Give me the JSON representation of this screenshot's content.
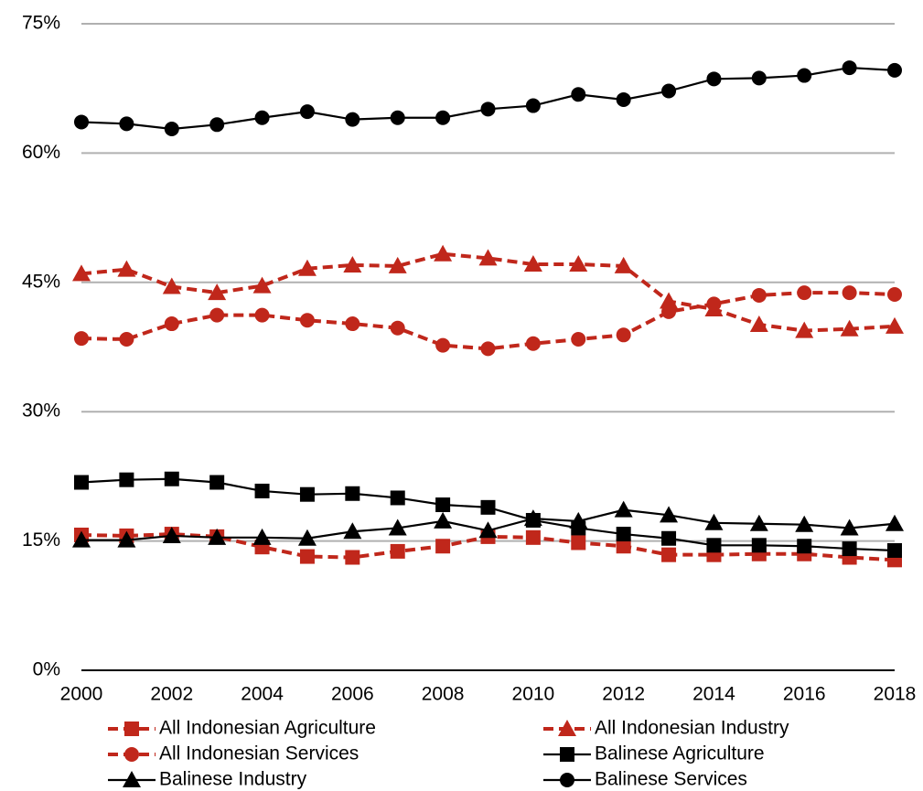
{
  "chart_data": {
    "type": "line",
    "x": [
      2000,
      2001,
      2002,
      2003,
      2004,
      2005,
      2006,
      2007,
      2008,
      2009,
      2010,
      2011,
      2012,
      2013,
      2014,
      2015,
      2016,
      2017,
      2018
    ],
    "xlim": [
      2000,
      2018
    ],
    "xticks": [
      2000,
      2002,
      2004,
      2006,
      2008,
      2010,
      2012,
      2014,
      2016,
      2018
    ],
    "ylim": [
      0,
      75
    ],
    "yticks": [
      {
        "value": 0,
        "label": "0%"
      },
      {
        "value": 15,
        "label": "15%"
      },
      {
        "value": 30,
        "label": "30%"
      },
      {
        "value": 45,
        "label": "45%"
      },
      {
        "value": 60,
        "label": "60%"
      },
      {
        "value": 75,
        "label": "75%"
      }
    ],
    "grid": true,
    "legend": "bottom",
    "series": [
      {
        "name": "All Indonesian Agriculture",
        "color": "#c0271b",
        "dash": true,
        "marker": "square",
        "values": [
          15.7,
          15.6,
          15.8,
          15.5,
          14.3,
          13.2,
          13.1,
          13.8,
          14.4,
          15.5,
          15.4,
          14.8,
          14.4,
          13.4,
          13.4,
          13.5,
          13.5,
          13.1,
          12.8
        ]
      },
      {
        "name": "All Indonesian Industry",
        "color": "#c0271b",
        "dash": true,
        "marker": "triangle",
        "values": [
          46.0,
          46.5,
          44.5,
          43.8,
          44.6,
          46.6,
          47.0,
          46.9,
          48.3,
          47.8,
          47.1,
          47.1,
          46.9,
          42.8,
          41.9,
          40.1,
          39.4,
          39.6,
          39.9
        ]
      },
      {
        "name": "All Indonesian Services",
        "color": "#c0271b",
        "dash": true,
        "marker": "circle",
        "values": [
          38.5,
          38.4,
          40.2,
          41.2,
          41.2,
          40.6,
          40.2,
          39.7,
          37.7,
          37.3,
          37.9,
          38.4,
          38.9,
          41.6,
          42.5,
          43.5,
          43.8,
          43.8,
          43.6
        ]
      },
      {
        "name": "Balinese Agriculture",
        "color": "#000000",
        "dash": false,
        "marker": "square",
        "values": [
          21.8,
          22.1,
          22.2,
          21.8,
          20.8,
          20.4,
          20.5,
          20.0,
          19.2,
          18.9,
          17.4,
          16.5,
          15.8,
          15.3,
          14.5,
          14.5,
          14.4,
          14.1,
          13.9
        ]
      },
      {
        "name": "Balinese Industry",
        "color": "#000000",
        "dash": false,
        "marker": "triangle",
        "values": [
          15.1,
          15.1,
          15.6,
          15.4,
          15.4,
          15.3,
          16.1,
          16.5,
          17.3,
          16.2,
          17.6,
          17.3,
          18.6,
          18.0,
          17.1,
          17.0,
          16.9,
          16.5,
          17.0
        ]
      },
      {
        "name": "Balinese Services",
        "color": "#000000",
        "dash": false,
        "marker": "circle",
        "values": [
          63.6,
          63.4,
          62.8,
          63.3,
          64.1,
          64.8,
          63.9,
          64.1,
          64.1,
          65.1,
          65.5,
          66.8,
          66.2,
          67.2,
          68.6,
          68.7,
          69.0,
          69.9,
          69.6
        ]
      }
    ]
  }
}
